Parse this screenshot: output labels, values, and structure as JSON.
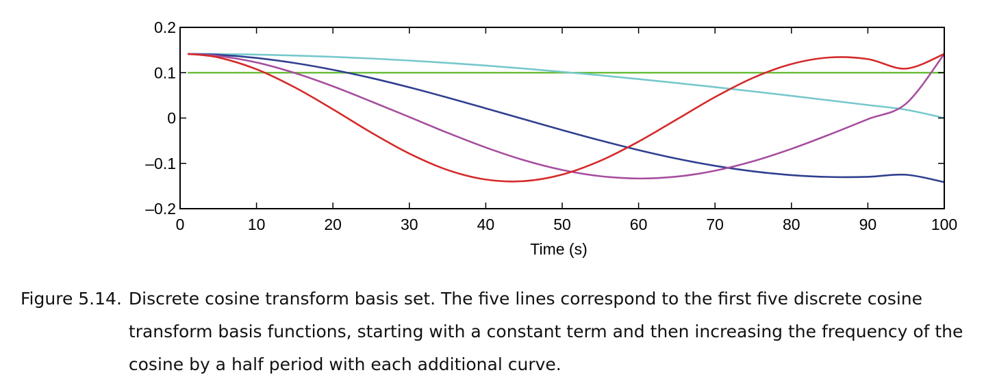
{
  "chart_data": {
    "type": "line",
    "xlabel": "Time (s)",
    "ylabel": "",
    "xlim": [
      0,
      100
    ],
    "ylim": [
      -0.2,
      0.2
    ],
    "xticks": [
      0,
      10,
      20,
      30,
      40,
      50,
      60,
      70,
      80,
      90,
      100
    ],
    "yticks": [
      0.2,
      0.1,
      0,
      -0.1,
      -0.2
    ],
    "xtick_labels": [
      "0",
      "10",
      "20",
      "30",
      "40",
      "50",
      "60",
      "70",
      "80",
      "90",
      "100"
    ],
    "ytick_labels": [
      "0.2",
      "0.1",
      "0",
      "–0.1",
      "–0.2"
    ],
    "grid": false,
    "legend": "none",
    "x_samples": [
      1,
      5,
      10,
      15,
      20,
      25,
      30,
      35,
      40,
      45,
      50,
      55,
      60,
      65,
      70,
      75,
      80,
      85,
      90,
      95,
      100
    ],
    "series": [
      {
        "color": "#6cbf3c",
        "values": [
          0.1,
          0.1,
          0.1,
          0.1,
          0.1,
          0.1,
          0.1,
          0.1,
          0.1,
          0.1,
          0.1,
          0.1,
          0.1,
          0.1,
          0.1,
          0.1,
          0.1,
          0.1,
          0.1,
          0.1,
          0.1
        ]
      },
      {
        "color": "#76c8cc",
        "values": [
          0.1414,
          0.1411,
          0.1399,
          0.1378,
          0.135,
          0.1313,
          0.1268,
          0.1216,
          0.1157,
          0.1091,
          0.1019,
          0.0942,
          0.086,
          0.0773,
          0.0682,
          0.0587,
          0.0489,
          0.0389,
          0.0287,
          0.0183,
          0.0
        ]
      },
      {
        "color": "#2f3f8f",
        "values": [
          0.1414,
          0.1395,
          0.1325,
          0.1213,
          0.1064,
          0.0884,
          0.0677,
          0.0451,
          0.0214,
          -0.0027,
          -0.0266,
          -0.0495,
          -0.0707,
          -0.0896,
          -0.1054,
          -0.1176,
          -0.1259,
          -0.13,
          -0.1297,
          -0.1251,
          -0.1414
        ]
      },
      {
        "color": "#a64e9e",
        "values": [
          0.1414,
          0.137,
          0.1226,
          0.0994,
          0.07,
          0.0366,
          0.0021,
          -0.0326,
          -0.065,
          -0.093,
          -0.1145,
          -0.1283,
          -0.1334,
          -0.1292,
          -0.1162,
          -0.0953,
          -0.068,
          -0.0363,
          -0.0025,
          0.0318,
          0.1414
        ]
      },
      {
        "color": "#d42a2a",
        "values": [
          0.1414,
          0.1337,
          0.1076,
          0.0677,
          0.0193,
          -0.0319,
          -0.0784,
          -0.1146,
          -0.1357,
          -0.1392,
          -0.1247,
          -0.0943,
          -0.052,
          -0.003,
          0.0462,
          0.0888,
          0.1191,
          0.1336,
          0.13,
          0.109,
          0.1414
        ]
      }
    ]
  },
  "caption": {
    "label": "Figure 5.14.",
    "text": "Discrete cosine transform basis set. The five lines correspond to the first five discrete cosine transform basis functions, starting with a constant term and then increasing the frequency of the cosine by a half period with each additional curve."
  }
}
